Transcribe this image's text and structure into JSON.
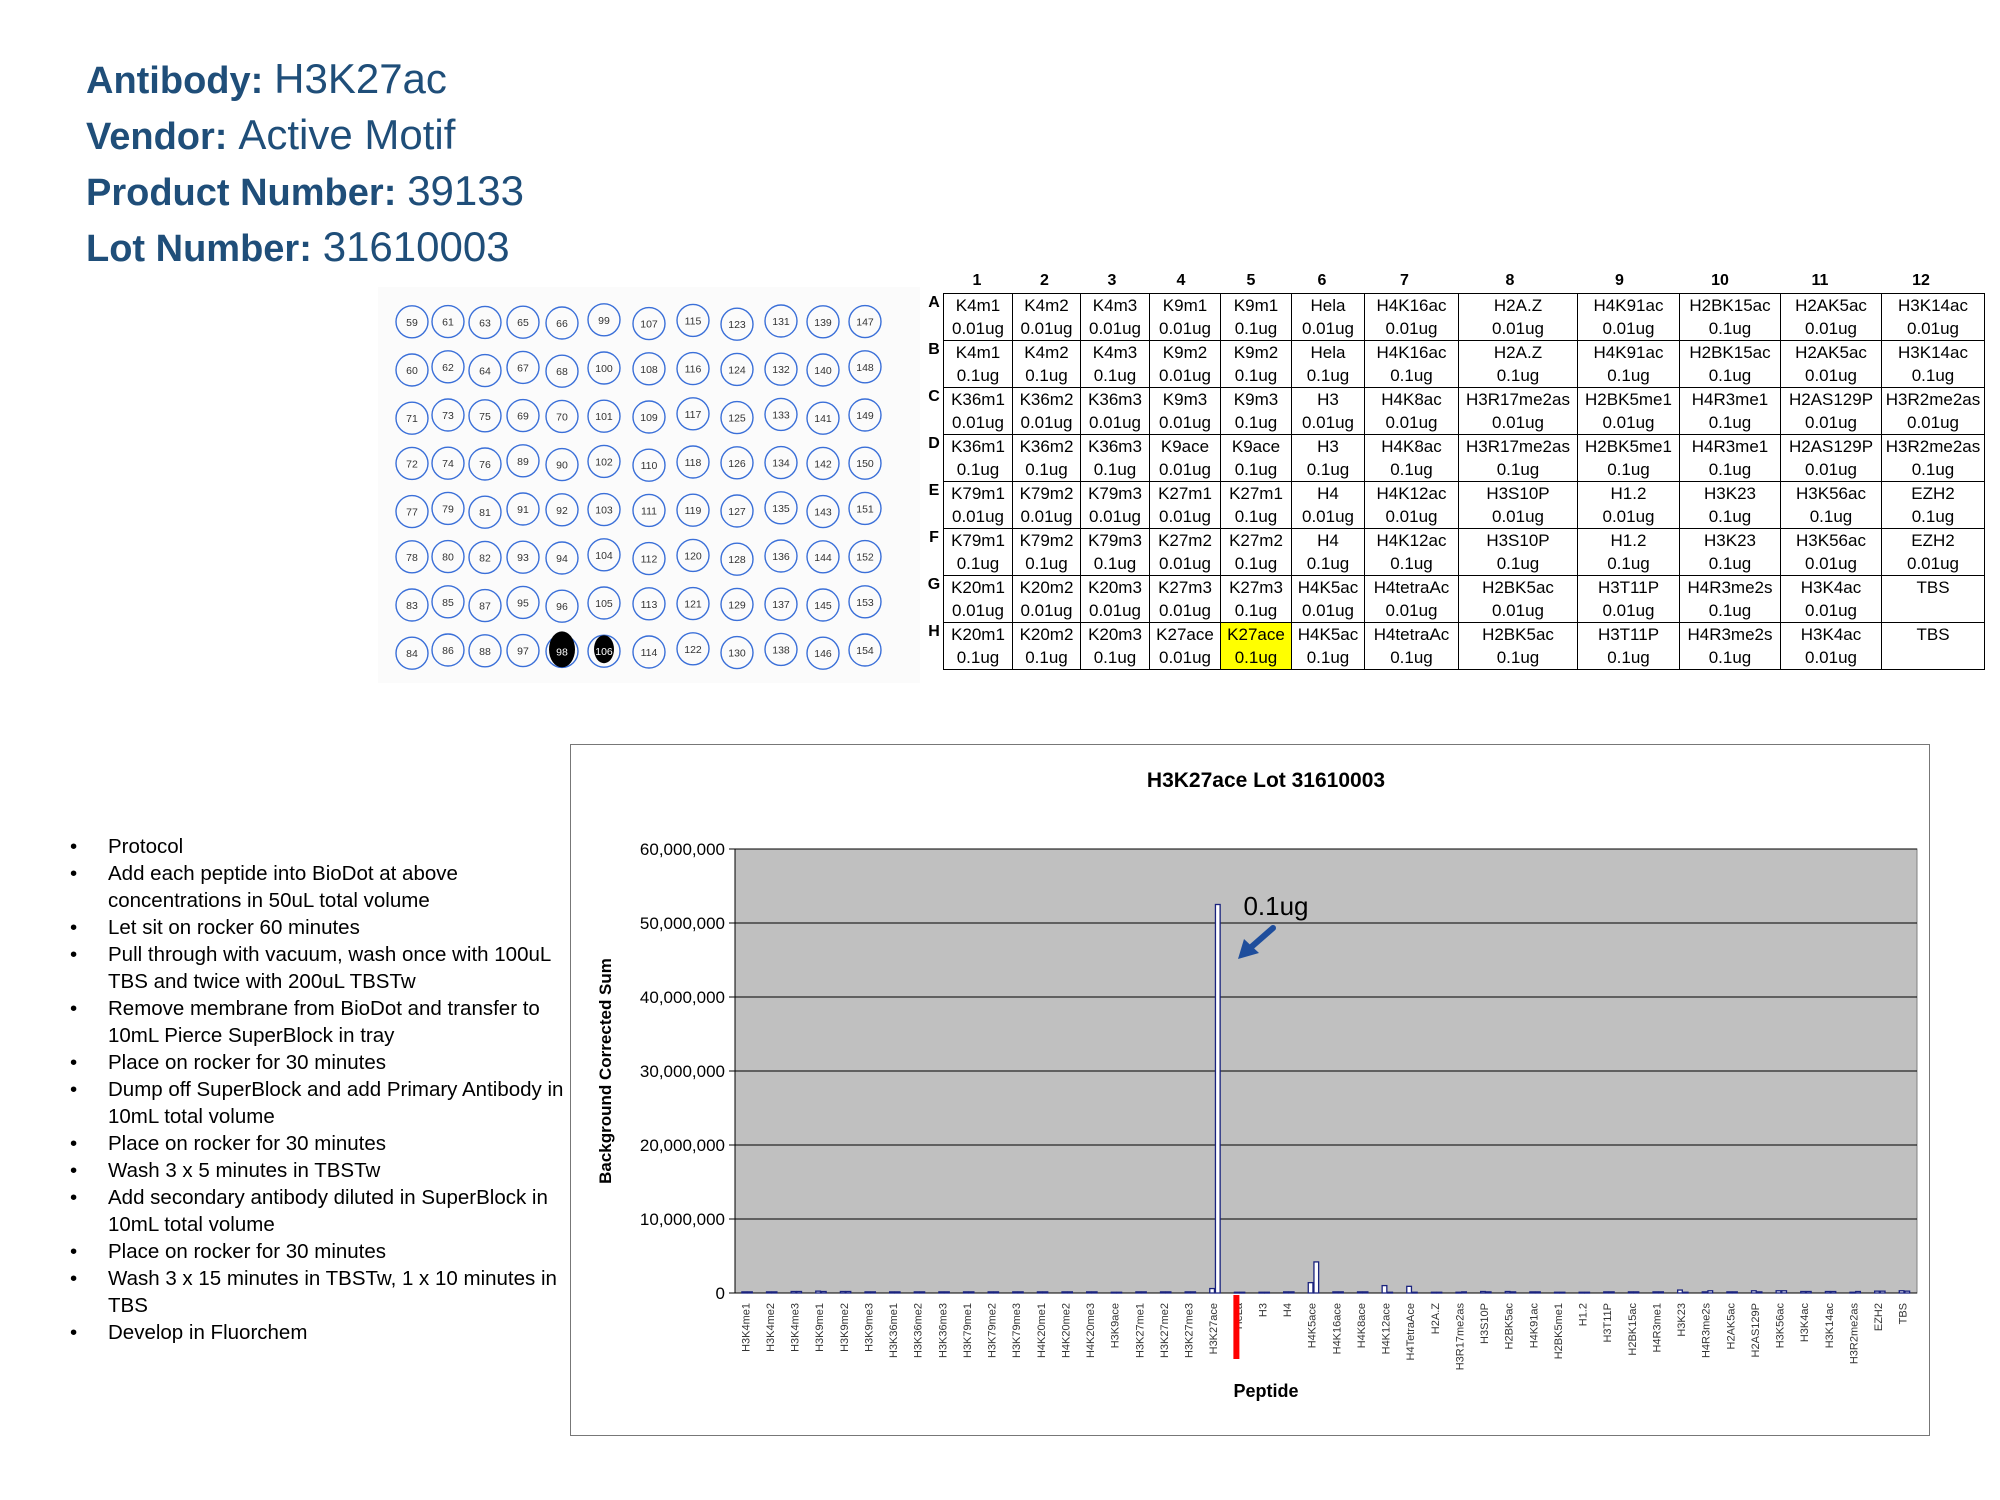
{
  "header": {
    "antibody_label": "Antibody:",
    "antibody_value": "H3K27ac",
    "vendor_label": "Vendor:",
    "vendor_value": "Active Motif",
    "product_label": "Product Number:",
    "product_value": "39133",
    "lot_label": "Lot Number:",
    "lot_value": "31610003"
  },
  "blot": {
    "rows": [
      [
        "59",
        "61",
        "63",
        "65",
        "66",
        "99",
        "107",
        "115",
        "123",
        "131",
        "139",
        "147"
      ],
      [
        "60",
        "62",
        "64",
        "67",
        "68",
        "100",
        "108",
        "116",
        "124",
        "132",
        "140",
        "148"
      ],
      [
        "71",
        "73",
        "75",
        "69",
        "70",
        "101",
        "109",
        "117",
        "125",
        "133",
        "141",
        "149"
      ],
      [
        "72",
        "74",
        "76",
        "89",
        "90",
        "102",
        "110",
        "118",
        "126",
        "134",
        "142",
        "150"
      ],
      [
        "77",
        "79",
        "81",
        "91",
        "92",
        "103",
        "111",
        "119",
        "127",
        "135",
        "143",
        "151"
      ],
      [
        "78",
        "80",
        "82",
        "93",
        "94",
        "104",
        "112",
        "120",
        "128",
        "136",
        "144",
        "152"
      ],
      [
        "83",
        "85",
        "87",
        "95",
        "96",
        "105",
        "113",
        "121",
        "129",
        "137",
        "145",
        "153"
      ],
      [
        "84",
        "86",
        "88",
        "97",
        "98",
        "106",
        "114",
        "122",
        "130",
        "138",
        "146",
        "154"
      ]
    ],
    "spot_color": "#000000",
    "circle_color": "#3a6fd8"
  },
  "plate": {
    "columns": [
      "1",
      "2",
      "3",
      "4",
      "5",
      "6",
      "7",
      "8",
      "9",
      "10",
      "11",
      "12"
    ],
    "row_letters": [
      "A",
      "B",
      "C",
      "D",
      "E",
      "F",
      "G",
      "H"
    ],
    "rows": [
      [
        [
          "K4m1",
          "0.01ug"
        ],
        [
          "K4m2",
          "0.01ug"
        ],
        [
          "K4m3",
          "0.01ug"
        ],
        [
          "K9m1",
          "0.01ug"
        ],
        [
          "K9m1",
          "0.1ug"
        ],
        [
          "Hela",
          "0.01ug"
        ],
        [
          "H4K16ac",
          "0.01ug"
        ],
        [
          "H2A.Z",
          "0.01ug"
        ],
        [
          "H4K91ac",
          "0.01ug"
        ],
        [
          "H2BK15ac",
          "0.1ug"
        ],
        [
          "H2AK5ac",
          "0.01ug"
        ],
        [
          "H3K14ac",
          "0.01ug"
        ]
      ],
      [
        [
          "K4m1",
          "0.1ug"
        ],
        [
          "K4m2",
          "0.1ug"
        ],
        [
          "K4m3",
          "0.1ug"
        ],
        [
          "K9m2",
          "0.01ug"
        ],
        [
          "K9m2",
          "0.1ug"
        ],
        [
          "Hela",
          "0.1ug"
        ],
        [
          "H4K16ac",
          "0.1ug"
        ],
        [
          "H2A.Z",
          "0.1ug"
        ],
        [
          "H4K91ac",
          "0.1ug"
        ],
        [
          "H2BK15ac",
          "0.1ug"
        ],
        [
          "H2AK5ac",
          "0.01ug"
        ],
        [
          "H3K14ac",
          "0.1ug"
        ]
      ],
      [
        [
          "K36m1",
          "0.01ug"
        ],
        [
          "K36m2",
          "0.01ug"
        ],
        [
          "K36m3",
          "0.01ug"
        ],
        [
          "K9m3",
          "0.01ug"
        ],
        [
          "K9m3",
          "0.1ug"
        ],
        [
          "H3",
          "0.01ug"
        ],
        [
          "H4K8ac",
          "0.01ug"
        ],
        [
          "H3R17me2as",
          "0.01ug"
        ],
        [
          "H2BK5me1",
          "0.01ug"
        ],
        [
          "H4R3me1",
          "0.1ug"
        ],
        [
          "H2AS129P",
          "0.01ug"
        ],
        [
          "H3R2me2as",
          "0.01ug"
        ]
      ],
      [
        [
          "K36m1",
          "0.1ug"
        ],
        [
          "K36m2",
          "0.1ug"
        ],
        [
          "K36m3",
          "0.1ug"
        ],
        [
          "K9ace",
          "0.01ug"
        ],
        [
          "K9ace",
          "0.1ug"
        ],
        [
          "H3",
          "0.1ug"
        ],
        [
          "H4K8ac",
          "0.1ug"
        ],
        [
          "H3R17me2as",
          "0.1ug"
        ],
        [
          "H2BK5me1",
          "0.1ug"
        ],
        [
          "H4R3me1",
          "0.1ug"
        ],
        [
          "H2AS129P",
          "0.01ug"
        ],
        [
          "H3R2me2as",
          "0.1ug"
        ]
      ],
      [
        [
          "K79m1",
          "0.01ug"
        ],
        [
          "K79m2",
          "0.01ug"
        ],
        [
          "K79m3",
          "0.01ug"
        ],
        [
          "K27m1",
          "0.01ug"
        ],
        [
          "K27m1",
          "0.1ug"
        ],
        [
          "H4",
          "0.01ug"
        ],
        [
          "H4K12ac",
          "0.01ug"
        ],
        [
          "H3S10P",
          "0.01ug"
        ],
        [
          "H1.2",
          "0.01ug"
        ],
        [
          "H3K23",
          "0.1ug"
        ],
        [
          "H3K56ac",
          "0.1ug"
        ],
        [
          "EZH2",
          "0.1ug"
        ]
      ],
      [
        [
          "K79m1",
          "0.1ug"
        ],
        [
          "K79m2",
          "0.1ug"
        ],
        [
          "K79m3",
          "0.1ug"
        ],
        [
          "K27m2",
          "0.01ug"
        ],
        [
          "K27m2",
          "0.1ug"
        ],
        [
          "H4",
          "0.1ug"
        ],
        [
          "H4K12ac",
          "0.1ug"
        ],
        [
          "H3S10P",
          "0.1ug"
        ],
        [
          "H1.2",
          "0.1ug"
        ],
        [
          "H3K23",
          "0.1ug"
        ],
        [
          "H3K56ac",
          "0.01ug"
        ],
        [
          "EZH2",
          "0.01ug"
        ]
      ],
      [
        [
          "K20m1",
          "0.01ug"
        ],
        [
          "K20m2",
          "0.01ug"
        ],
        [
          "K20m3",
          "0.01ug"
        ],
        [
          "K27m3",
          "0.01ug"
        ],
        [
          "K27m3",
          "0.1ug"
        ],
        [
          "H4K5ac",
          "0.01ug"
        ],
        [
          "H4tetraAc",
          "0.01ug"
        ],
        [
          "H2BK5ac",
          "0.01ug"
        ],
        [
          "H3T11P",
          "0.01ug"
        ],
        [
          "H4R3me2s",
          "0.1ug"
        ],
        [
          "H3K4ac",
          "0.01ug"
        ],
        [
          "TBS",
          ""
        ]
      ],
      [
        [
          "K20m1",
          "0.1ug"
        ],
        [
          "K20m2",
          "0.1ug"
        ],
        [
          "K20m3",
          "0.1ug"
        ],
        [
          "K27ace",
          "0.01ug"
        ],
        [
          "K27ace",
          "0.1ug"
        ],
        [
          "H4K5ac",
          "0.1ug"
        ],
        [
          "H4tetraAc",
          "0.1ug"
        ],
        [
          "H2BK5ac",
          "0.1ug"
        ],
        [
          "H3T11P",
          "0.1ug"
        ],
        [
          "H4R3me2s",
          "0.1ug"
        ],
        [
          "H3K4ac",
          "0.01ug"
        ],
        [
          "TBS",
          ""
        ]
      ]
    ],
    "highlight_color": "#ffff00"
  },
  "protocol": [
    "Protocol",
    "Add each peptide into BioDot at above concentrations in 50uL total volume",
    "Let sit on rocker 60 minutes",
    "Pull through with vacuum, wash once with 100uL TBS and twice with 200uL TBSTw",
    "Remove membrane from BioDot and transfer to 10mL Pierce SuperBlock in tray",
    "Place on rocker for 30 minutes",
    "Dump off SuperBlock and add Primary Antibody in 10mL total volume",
    "Place on rocker for 30 minutes",
    "Wash 3 x 5 minutes in TBSTw",
    "Add secondary antibody diluted in SuperBlock in 10mL total volume",
    "Place on rocker for 30 minutes",
    "Wash 3 x 15 minutes in TBSTw, 1 x 10 minutes in TBS",
    "Develop in Fluorchem"
  ],
  "chart_data": {
    "type": "bar",
    "title": "H3K27ace Lot 31610003",
    "xlabel": "Peptide",
    "ylabel": "Background Corrected Sum",
    "ylim": [
      0,
      60000000
    ],
    "yticks": [
      "0",
      "10,000,000",
      "20,000,000",
      "30,000,000",
      "40,000,000",
      "50,000,000",
      "60,000,000"
    ],
    "grid": true,
    "plot_bg": "#c0c0c0",
    "bar_fill": "#ffffff",
    "bar_stroke": "#1a237e",
    "highlight_color": "#ff0000",
    "highlight_category": "H3K27ace",
    "annotation": "0.1ug",
    "arrow_color": "#1f4e9c",
    "categories": [
      "H3K4me1",
      "H3K4me2",
      "H3K4me3",
      "H3K9me1",
      "H3K9me2",
      "H3K9me3",
      "H3K36me1",
      "H3K36me2",
      "H3K36me3",
      "H3K79me1",
      "H3K79me2",
      "H3K79me3",
      "H4K20me1",
      "H4K20me2",
      "H4K20me3",
      "H3K9ace",
      "H3K27me1",
      "H3K27me2",
      "H3K27me3",
      "H3K27ace",
      "HeLa",
      "H3",
      "H4",
      "H4K5ace",
      "H4K16ace",
      "H4K8ace",
      "H4K12ace",
      "H4TetraAce",
      "H2A.Z",
      "H3R17me2as",
      "H3S10P",
      "H2BK5ac",
      "H4K91ac",
      "H2BK5me1",
      "H1.2",
      "H3T11P",
      "H2BK15ac",
      "H4R3me1",
      "H3K23",
      "H4R3me2s",
      "H2AK5ac",
      "H2AS129P",
      "H3K56ac",
      "H3K4ac",
      "H3K14ac",
      "H3R2me2as",
      "EZH2",
      "TBS"
    ],
    "series": [
      {
        "values_a": [
          150000,
          150000,
          200000,
          250000,
          200000,
          150000,
          150000,
          150000,
          150000,
          150000,
          150000,
          150000,
          150000,
          150000,
          150000,
          100000,
          150000,
          150000,
          150000,
          600000,
          100000,
          100000,
          150000,
          1400000,
          150000,
          150000,
          1000000,
          900000,
          100000,
          100000,
          200000,
          200000,
          150000,
          100000,
          100000,
          150000,
          150000,
          150000,
          400000,
          150000,
          150000,
          300000,
          300000,
          200000,
          200000,
          100000,
          250000,
          300000
        ],
        "values_b": [
          150000,
          150000,
          200000,
          200000,
          200000,
          150000,
          150000,
          150000,
          150000,
          150000,
          150000,
          150000,
          150000,
          150000,
          150000,
          100000,
          150000,
          150000,
          150000,
          52500000,
          100000,
          100000,
          150000,
          4200000,
          150000,
          150000,
          100000,
          100000,
          100000,
          150000,
          150000,
          150000,
          150000,
          100000,
          100000,
          150000,
          150000,
          150000,
          100000,
          300000,
          150000,
          150000,
          300000,
          200000,
          200000,
          200000,
          250000,
          250000
        ]
      }
    ]
  }
}
